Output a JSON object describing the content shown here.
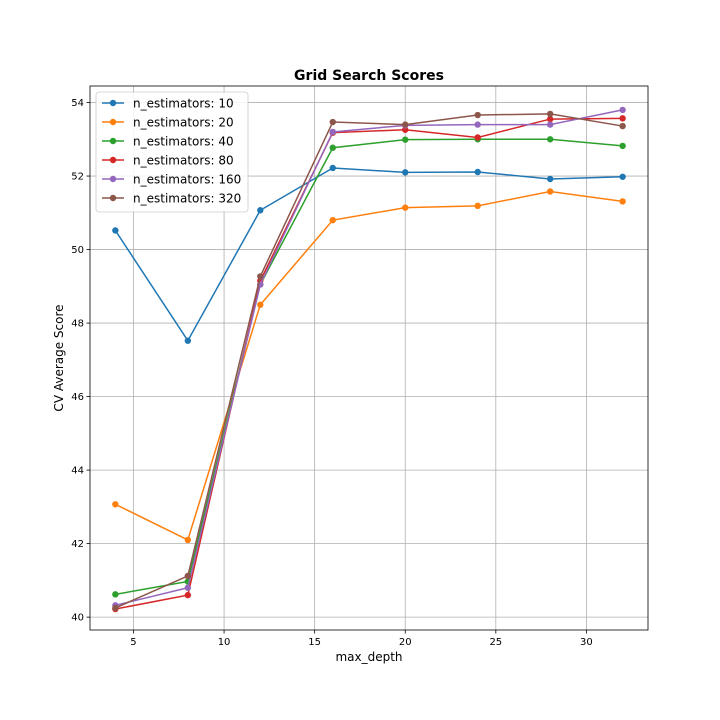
{
  "chart_data": {
    "type": "line",
    "title": "Grid Search Scores",
    "xlabel": "max_depth",
    "ylabel": "CV Average Score",
    "xlim": [
      2.6,
      33.4
    ],
    "ylim": [
      39.65,
      54.45
    ],
    "xticks": [
      5,
      10,
      15,
      20,
      25,
      30
    ],
    "yticks": [
      40,
      42,
      44,
      46,
      48,
      50,
      52,
      54
    ],
    "grid": true,
    "legend_position": "top-left",
    "x": [
      4,
      8,
      12,
      16,
      20,
      24,
      28,
      32
    ],
    "series": [
      {
        "name": "n_estimators: 10",
        "color": "#1f77b4",
        "values": [
          50.52,
          47.52,
          51.07,
          52.22,
          52.1,
          52.11,
          51.92,
          51.98
        ]
      },
      {
        "name": "n_estimators: 20",
        "color": "#ff7f0e",
        "values": [
          43.07,
          42.1,
          48.5,
          50.8,
          51.14,
          51.19,
          51.58,
          51.31
        ]
      },
      {
        "name": "n_estimators: 40",
        "color": "#2ca02c",
        "values": [
          40.62,
          40.97,
          49.05,
          52.77,
          52.99,
          53.0,
          53.0,
          52.82
        ]
      },
      {
        "name": "n_estimators: 80",
        "color": "#d62728",
        "values": [
          40.22,
          40.6,
          49.15,
          53.18,
          53.26,
          53.05,
          53.55,
          53.57
        ]
      },
      {
        "name": "n_estimators: 160",
        "color": "#9467bd",
        "values": [
          40.32,
          40.8,
          49.05,
          53.2,
          53.38,
          53.4,
          53.4,
          53.8
        ]
      },
      {
        "name": "n_estimators: 320",
        "color": "#8c564b",
        "values": [
          40.25,
          41.12,
          49.27,
          53.47,
          53.4,
          53.66,
          53.69,
          53.36
        ]
      }
    ]
  }
}
